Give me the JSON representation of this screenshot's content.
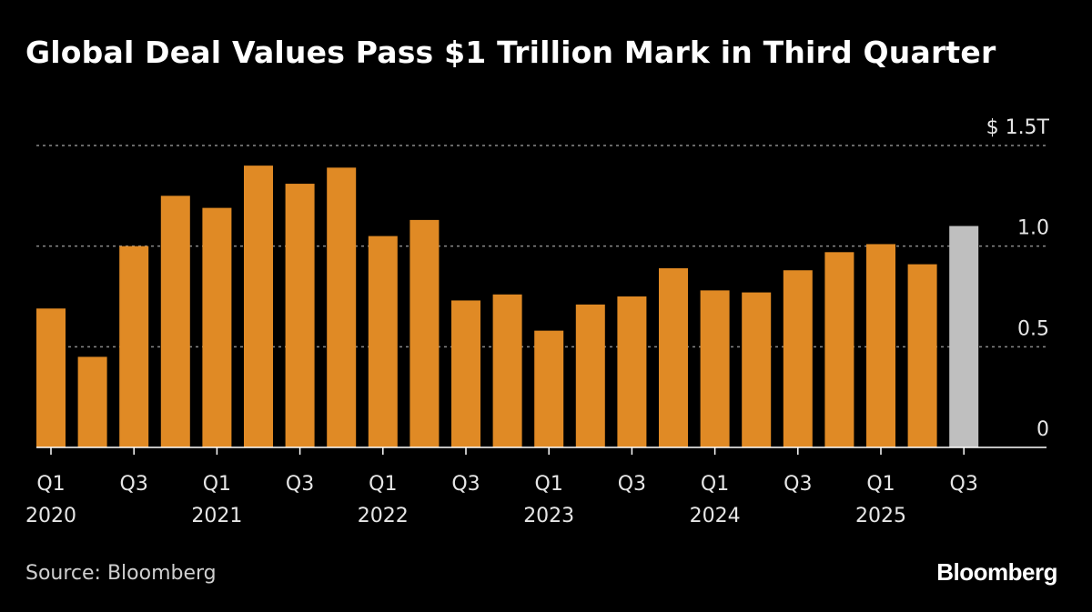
{
  "chart_data": {
    "type": "bar",
    "title": "Global Deal Values Pass $1 Trillion Mark in Third Quarter",
    "xlabel": "",
    "ylabel": "",
    "unit_label": "$ 1.5T",
    "ylim": [
      0,
      1.5
    ],
    "yticks": [
      {
        "value": 0,
        "label": "0"
      },
      {
        "value": 0.5,
        "label": "0.5"
      },
      {
        "value": 1.0,
        "label": "1.0"
      },
      {
        "value": 1.5,
        "label": "$ 1.5T"
      }
    ],
    "grid": true,
    "categories": [
      "Q1 2020",
      "Q2 2020",
      "Q3 2020",
      "Q4 2020",
      "Q1 2021",
      "Q2 2021",
      "Q3 2021",
      "Q4 2021",
      "Q1 2022",
      "Q2 2022",
      "Q3 2022",
      "Q4 2022",
      "Q1 2023",
      "Q2 2023",
      "Q3 2023",
      "Q4 2023",
      "Q1 2024",
      "Q2 2024",
      "Q3 2024",
      "Q4 2024",
      "Q1 2025",
      "Q2 2025",
      "Q3 2025"
    ],
    "values": [
      0.69,
      0.45,
      1.0,
      1.25,
      1.19,
      1.4,
      1.31,
      1.39,
      1.05,
      1.13,
      0.73,
      0.76,
      0.58,
      0.71,
      0.75,
      0.89,
      0.78,
      0.77,
      0.88,
      0.97,
      1.01,
      0.91,
      1.1
    ],
    "highlight_index": 22,
    "xtick_labels": [
      {
        "index": 0,
        "quarter": "Q1",
        "year": "2020"
      },
      {
        "index": 2,
        "quarter": "Q3",
        "year": ""
      },
      {
        "index": 4,
        "quarter": "Q1",
        "year": "2021"
      },
      {
        "index": 6,
        "quarter": "Q3",
        "year": ""
      },
      {
        "index": 8,
        "quarter": "Q1",
        "year": "2022"
      },
      {
        "index": 10,
        "quarter": "Q3",
        "year": ""
      },
      {
        "index": 12,
        "quarter": "Q1",
        "year": "2023"
      },
      {
        "index": 14,
        "quarter": "Q3",
        "year": ""
      },
      {
        "index": 16,
        "quarter": "Q1",
        "year": "2024"
      },
      {
        "index": 18,
        "quarter": "Q3",
        "year": ""
      },
      {
        "index": 20,
        "quarter": "Q1",
        "year": "2025"
      },
      {
        "index": 22,
        "quarter": "Q3",
        "year": ""
      }
    ],
    "colors": {
      "bar": "#E08A25",
      "highlight": "#BFBFBF",
      "grid": "#8a8a8a",
      "axis": "#ffffff",
      "tick_text": "#e6e6e6"
    }
  },
  "footer": {
    "source": "Source: Bloomberg",
    "brand": "Bloomberg"
  }
}
